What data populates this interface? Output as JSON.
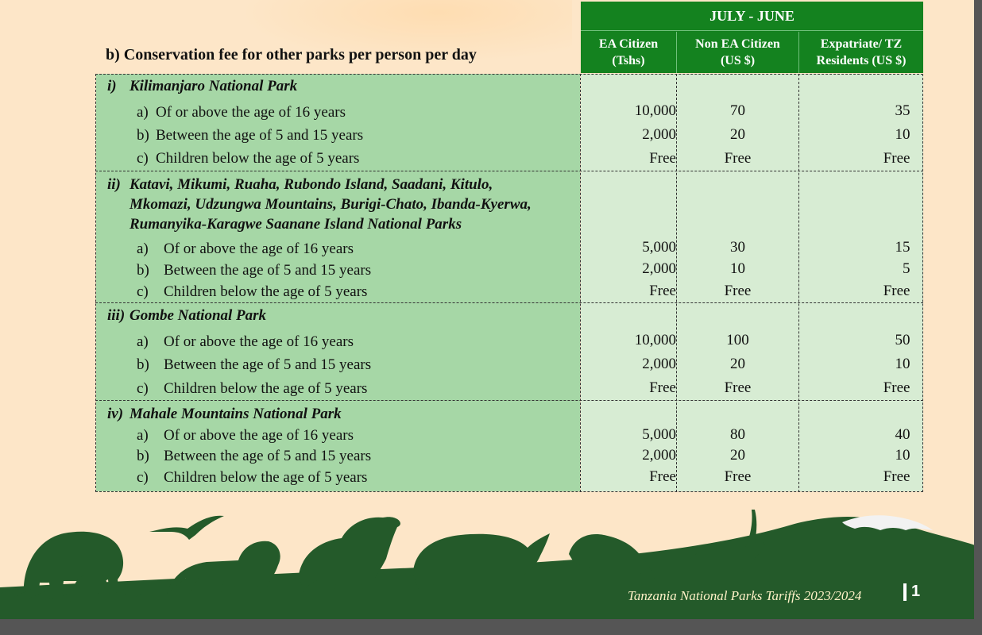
{
  "header": {
    "section_title": "b)  Conservation fee for other parks per person per day",
    "period": "JULY - JUNE",
    "columns": [
      {
        "line1": "EA Citizen",
        "line2": "(Tshs)"
      },
      {
        "line1": "Non EA Citizen",
        "line2": "(US $)"
      },
      {
        "line1": "Expatriate/ TZ",
        "line2": "Residents (US $)"
      }
    ]
  },
  "groups": [
    {
      "num": "i)",
      "title_lines": [
        "Kilimanjaro National Park"
      ],
      "rows": [
        {
          "letter": "a)",
          "label": "Of or above the age of 16 years",
          "ea": "10,000",
          "non_ea": "70",
          "expat": "35"
        },
        {
          "letter": "b)",
          "label": "Between the age of 5 and 15 years",
          "ea": "2,000",
          "non_ea": "20",
          "expat": "10"
        },
        {
          "letter": "c)",
          "label": "Children below the age of 5 years",
          "ea": "Free",
          "non_ea": "Free",
          "expat": "Free"
        }
      ]
    },
    {
      "num": "ii)",
      "title_lines": [
        "Katavi, Mikumi, Ruaha, Rubondo Island, Saadani, Kitulo,",
        "Mkomazi, Udzungwa Mountains, Burigi-Chato, Ibanda-Kyerwa,",
        "Rumanyika-Karagwe Saanane Island National Parks"
      ],
      "rows": [
        {
          "letter": "a)",
          "label": "Of or above the age of 16 years",
          "ea": "5,000",
          "non_ea": "30",
          "expat": "15"
        },
        {
          "letter": "b)",
          "label": "Between the age of 5 and 15 years",
          "ea": "2,000",
          "non_ea": "10",
          "expat": "5"
        },
        {
          "letter": "c)",
          "label": "Children below the age of 5 years",
          "ea": "Free",
          "non_ea": "Free",
          "expat": "Free"
        }
      ]
    },
    {
      "num": "iii)",
      "title_lines": [
        "Gombe National Park"
      ],
      "rows": [
        {
          "letter": "a)",
          "label": "Of or above the age of 16 years",
          "ea": "10,000",
          "non_ea": "100",
          "expat": "50"
        },
        {
          "letter": "b)",
          "label": "Between the age of 5 and 15 years",
          "ea": "2,000",
          "non_ea": "20",
          "expat": "10"
        },
        {
          "letter": "c)",
          "label": "Children below the age of 5 years",
          "ea": "Free",
          "non_ea": "Free",
          "expat": "Free"
        }
      ]
    },
    {
      "num": "iv)",
      "title_lines": [
        "Mahale Mountains National Park"
      ],
      "rows": [
        {
          "letter": "a)",
          "label": "Of or above the age of 16 years",
          "ea": "5,000",
          "non_ea": "80",
          "expat": "40"
        },
        {
          "letter": "b)",
          "label": "Between the age of 5 and 15 years",
          "ea": "2,000",
          "non_ea": "20",
          "expat": "10"
        },
        {
          "letter": "c)",
          "label": "Children below the age of 5 years",
          "ea": "Free",
          "non_ea": "Free",
          "expat": "Free"
        }
      ]
    }
  ],
  "footer": {
    "text": "Tanzania National Parks Tariffs 2023/2024",
    "page_number": "1"
  },
  "colors": {
    "page_bg": "#fde6c8",
    "header_green": "#14821f",
    "label_green": "#a6d7a6",
    "value_green": "#d7ecd3",
    "silhouette": "#245a2a"
  }
}
